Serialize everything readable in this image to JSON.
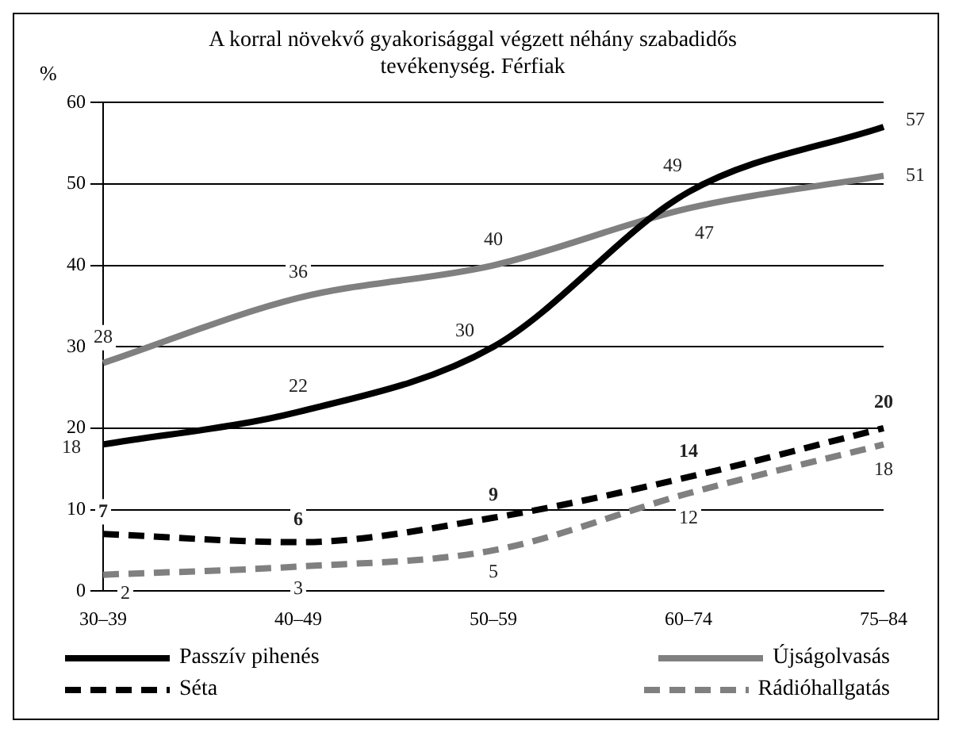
{
  "chart_data": {
    "type": "line",
    "title": "A korral növekvő gyakorisággal végzett néhány szabadidős tevékenység. Férfiak",
    "ylabel": "%",
    "categories": [
      "30–39",
      "40–49",
      "50–59",
      "60–74",
      "75–84"
    ],
    "series": [
      {
        "name": "Passzív pihenés",
        "color": "#000000",
        "line_style": "solid",
        "values": [
          18,
          22,
          30,
          49,
          57
        ]
      },
      {
        "name": "Újságolvasás",
        "color": "#808080",
        "line_style": "solid",
        "values": [
          28,
          36,
          40,
          47,
          51
        ]
      },
      {
        "name": "Séta",
        "color": "#000000",
        "line_style": "dashed",
        "values": [
          7,
          6,
          9,
          14,
          20
        ]
      },
      {
        "name": "Rádióhallgatás",
        "color": "#808080",
        "line_style": "dashed",
        "values": [
          2,
          3,
          5,
          12,
          18
        ]
      }
    ],
    "ylim": [
      0,
      60
    ],
    "yticks": [
      0,
      10,
      20,
      30,
      40,
      50,
      60
    ],
    "grid": "y",
    "legend": "bottom",
    "marker": "none",
    "data_labels": true
  }
}
